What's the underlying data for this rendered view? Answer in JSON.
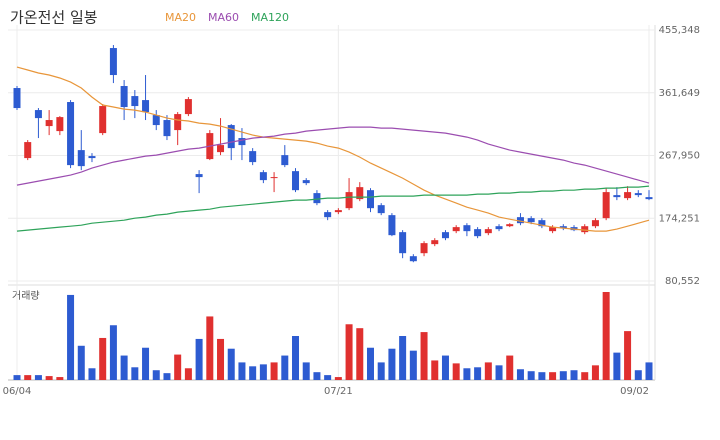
{
  "chart_data": {
    "type": "candlestick",
    "title": "가온전선 일봉",
    "volume_label": "거래량",
    "categories": [
      "06/04",
      null,
      null,
      null,
      null,
      null,
      null,
      null,
      null,
      null,
      null,
      null,
      null,
      null,
      null,
      null,
      null,
      null,
      null,
      null,
      null,
      null,
      null,
      null,
      null,
      null,
      null,
      null,
      null,
      null,
      "07/21",
      null,
      null,
      null,
      null,
      null,
      null,
      null,
      null,
      null,
      null,
      null,
      null,
      null,
      null,
      null,
      null,
      null,
      null,
      null,
      null,
      null,
      null,
      null,
      null,
      null,
      null,
      null,
      null,
      "09/02"
    ],
    "open": [
      368700,
      264100,
      335800,
      311900,
      304400,
      347800,
      276000,
      267100,
      301400,
      428400,
      371700,
      356700,
      350700,
      328300,
      320900,
      305900,
      329800,
      240200,
      262600,
      273000,
      313400,
      294000,
      274500,
      243100,
      234200,
      268500,
      244600,
      231200,
      211800,
      183400,
      183400,
      189300,
      202800,
      216200,
      193800,
      178900,
      153500,
      117600,
      122100,
      135600,
      153500,
      155000,
      163900,
      158000,
      152000,
      162400,
      162400,
      175900,
      174400,
      171400,
      155000,
      162400,
      161000,
      153500,
      162400,
      174400,
      208800,
      204300,
      211800,
      205800
    ],
    "high": [
      371700,
      291000,
      338800,
      335800,
      326800,
      350700,
      305900,
      271500,
      344800,
      432900,
      380600,
      365700,
      388100,
      335800,
      328300,
      332800,
      355200,
      246100,
      305900,
      323800,
      314900,
      308900,
      279000,
      246100,
      243100,
      283500,
      249100,
      234200,
      216200,
      186400,
      189300,
      234200,
      228200,
      219200,
      196800,
      181900,
      156500,
      120600,
      140000,
      144500,
      156500,
      163900,
      166900,
      161000,
      161000,
      165400,
      166900,
      181900,
      177400,
      174400,
      163900,
      165400,
      163900,
      165400,
      174400,
      219200,
      220700,
      222200,
      216200,
      216200
    ],
    "low": [
      335800,
      261100,
      294000,
      298400,
      298400,
      249100,
      246100,
      258100,
      298400,
      376100,
      320900,
      323800,
      320900,
      305900,
      291000,
      283500,
      326800,
      211800,
      261100,
      268500,
      261100,
      261100,
      253600,
      226700,
      213300,
      250600,
      213300,
      223700,
      193800,
      171400,
      180400,
      186400,
      199800,
      183400,
      178900,
      147500,
      114600,
      108600,
      117600,
      132600,
      141500,
      152000,
      147500,
      144500,
      149000,
      155000,
      161000,
      163900,
      165400,
      159500,
      152000,
      156500,
      155000,
      150500,
      159500,
      171400,
      201300,
      201300,
      205800,
      201300
    ],
    "close": [
      338800,
      288000,
      323800,
      320900,
      325300,
      253600,
      252100,
      264100,
      341800,
      388100,
      340300,
      341800,
      332800,
      313400,
      296900,
      329800,
      352200,
      235700,
      301400,
      283500,
      279000,
      283500,
      258100,
      231200,
      235700,
      253600,
      216200,
      226700,
      196800,
      175900,
      186400,
      213300,
      220700,
      189300,
      181900,
      149000,
      122100,
      110100,
      137100,
      141500,
      144500,
      161000,
      155000,
      147500,
      158000,
      158000,
      165400,
      166900,
      168400,
      162400,
      161000,
      159500,
      156500,
      162400,
      171400,
      213300,
      205800,
      213300,
      208800,
      202800
    ],
    "volume": [
      5,
      5,
      5,
      4,
      3,
      87,
      35,
      12,
      43,
      56,
      25,
      13,
      33,
      10,
      7,
      26,
      12,
      42,
      65,
      42,
      32,
      18,
      14,
      16,
      18,
      25,
      45,
      18,
      8,
      5,
      3,
      57,
      53,
      33,
      18,
      32,
      45,
      30,
      49,
      20,
      25,
      17,
      12,
      13,
      18,
      15,
      25,
      11,
      9,
      8,
      8,
      9,
      10,
      8,
      15,
      90,
      28,
      50,
      10,
      18
    ],
    "up_color": "#e0302f",
    "down_color": "#2d5bd1",
    "moving_averages": [
      {
        "name": "MA20",
        "color": "#e8963a",
        "values": [
          400000,
          395600,
          391100,
          388100,
          383600,
          377600,
          368700,
          355200,
          343300,
          340300,
          337300,
          335800,
          332800,
          328300,
          323800,
          320900,
          319400,
          316400,
          314900,
          311900,
          307400,
          302900,
          298400,
          295400,
          293900,
          292400,
          291000,
          289500,
          286500,
          282000,
          279000,
          273000,
          265600,
          256600,
          249100,
          241700,
          234200,
          225200,
          216200,
          208800,
          202800,
          196800,
          190800,
          186400,
          181900,
          175900,
          172900,
          169900,
          166900,
          163900,
          161000,
          159500,
          158000,
          156500,
          155000,
          155000,
          158000,
          162400,
          166900,
          171400
        ]
      },
      {
        "name": "MA60",
        "color": "#9b4db0",
        "values": [
          223700,
          226700,
          229700,
          232700,
          235700,
          238700,
          243100,
          249100,
          253600,
          258100,
          261100,
          264100,
          267100,
          268500,
          271500,
          274500,
          277500,
          279000,
          282000,
          285000,
          288000,
          291000,
          293900,
          295400,
          296900,
          299900,
          301400,
          304400,
          305900,
          307400,
          308900,
          310400,
          310400,
          310400,
          308900,
          308900,
          307400,
          305900,
          304400,
          302900,
          301400,
          298400,
          295400,
          291000,
          285000,
          280500,
          276000,
          273000,
          270000,
          267100,
          264100,
          261100,
          256600,
          253600,
          249100,
          244600,
          240200,
          235700,
          231200,
          226700
        ]
      },
      {
        "name": "MA120",
        "color": "#2ea35a",
        "values": [
          155000,
          156500,
          158000,
          159500,
          161000,
          162400,
          163900,
          166900,
          168400,
          169900,
          171400,
          174400,
          175900,
          178900,
          180400,
          183400,
          184900,
          186400,
          187800,
          190800,
          192300,
          193800,
          195300,
          196800,
          198300,
          199800,
          201300,
          201300,
          202800,
          204300,
          204300,
          205800,
          205800,
          205800,
          207300,
          207300,
          207300,
          207300,
          208800,
          208800,
          208800,
          208800,
          208800,
          210300,
          210300,
          211800,
          211800,
          213300,
          213300,
          214800,
          214800,
          216200,
          216200,
          217800,
          217800,
          219200,
          219200,
          220700,
          220700,
          222200
        ]
      }
    ],
    "ylim": [
      80552,
      455348
    ],
    "yticks": [
      {
        "value": 455348,
        "label": "455,348"
      },
      {
        "value": 361649,
        "label": "361,649"
      },
      {
        "value": 267950,
        "label": "267,950"
      },
      {
        "value": 174251,
        "label": "174,251"
      },
      {
        "value": 80552,
        "label": "80,552"
      }
    ],
    "grid": true
  }
}
